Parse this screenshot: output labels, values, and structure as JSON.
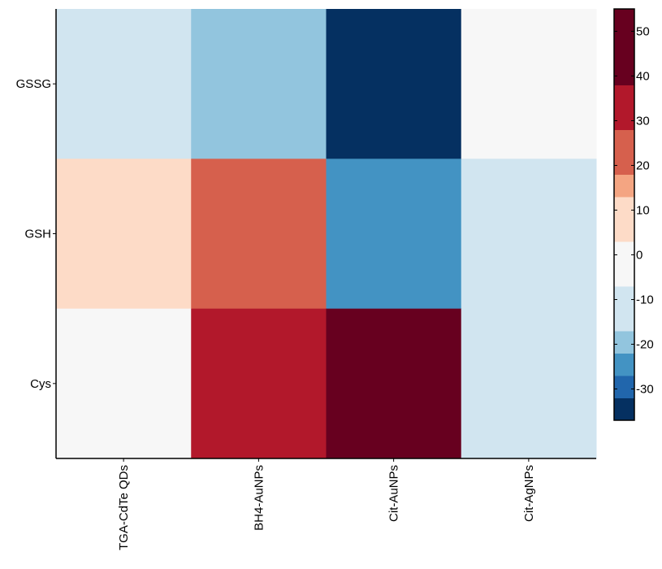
{
  "chart_data": {
    "type": "heatmap",
    "title": "",
    "xlabel": "",
    "ylabel": "",
    "columns": [
      "TGA-CdTe QDs",
      "BH4-AuNPs",
      "Cit-AuNPs",
      "Cit-AgNPs"
    ],
    "rows": [
      "GSSG",
      "GSH",
      "Cys"
    ],
    "values": [
      [
        -10,
        -20,
        -35,
        0
      ],
      [
        10,
        22,
        -27,
        -10
      ],
      [
        0,
        30,
        50,
        -10
      ]
    ],
    "colorbar": {
      "ticks": [
        50,
        40,
        30,
        20,
        10,
        0,
        -10,
        -20,
        -30
      ],
      "range": [
        -37,
        55
      ],
      "step": 5,
      "colors": [
        "#053061",
        "#2166ac",
        "#4393c3",
        "#92c5de",
        "#d1e5f0",
        "#f7f7f7",
        "#fddbc7",
        "#f4a582",
        "#d6604d",
        "#b2182b",
        "#67001f"
      ],
      "color_bounds": [
        -37,
        -32,
        -27,
        -22,
        -17,
        -7,
        3,
        13,
        18,
        28,
        38,
        55
      ]
    },
    "grid": false
  }
}
